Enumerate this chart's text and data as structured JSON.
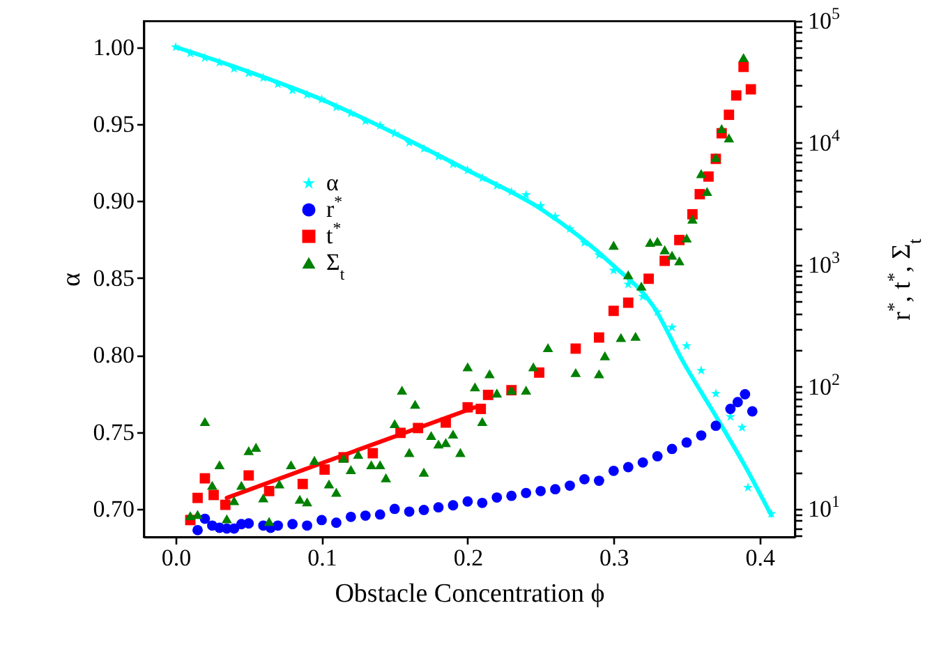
{
  "chart_data": {
    "type": "scatter",
    "xlabel": "Obstacle Concentration ϕ",
    "ylabel": "α",
    "y2label": "r$^{*}$, t$^{*}$, Σ$_{t}$",
    "log": "y2",
    "legend": "left",
    "xlim": [
      -0.022,
      0.424
    ],
    "ylim": [
      0.682,
      1.017
    ],
    "y2lim": [
      5.9,
      100000
    ],
    "xticks": [
      {
        "value": 0,
        "label": "0.0"
      },
      0.1,
      0.2,
      0.3,
      0.4
    ],
    "yticks": [
      {
        "value": 0.7,
        "label": "0.70"
      },
      0.75,
      {
        "value": 0.8,
        "label": "0.80"
      },
      0.85,
      {
        "value": 0.9,
        "label": "0.90"
      },
      0.95,
      {
        "value": 1,
        "label": "1.00"
      }
    ],
    "y2ticks": [
      {
        "value": 6,
        "label": null
      },
      {
        "value": 7,
        "label": null
      },
      {
        "value": 8,
        "label": null
      },
      {
        "value": 9,
        "label": null
      },
      {
        "value": 10,
        "label": "10$^{1}$"
      },
      {
        "value": 20,
        "label": null
      },
      {
        "value": 30,
        "label": null
      },
      {
        "value": 40,
        "label": null
      },
      {
        "value": 50,
        "label": null
      },
      {
        "value": 60,
        "label": null
      },
      {
        "value": 70,
        "label": null
      },
      {
        "value": 80,
        "label": null
      },
      {
        "value": 90,
        "label": null
      },
      {
        "value": 100,
        "label": "10$^{2}$"
      },
      {
        "value": 200,
        "label": null
      },
      {
        "value": 300,
        "label": null
      },
      {
        "value": 400,
        "label": null
      },
      {
        "value": 500,
        "label": null
      },
      {
        "value": 600,
        "label": null
      },
      {
        "value": 700,
        "label": null
      },
      {
        "value": 800,
        "label": null
      },
      {
        "value": 900,
        "label": null
      },
      {
        "value": 1000,
        "label": "10$^{3}$"
      },
      {
        "value": 2000,
        "label": null
      },
      {
        "value": 3000,
        "label": null
      },
      {
        "value": 4000,
        "label": null
      },
      {
        "value": 5000,
        "label": null
      },
      {
        "value": 6000,
        "label": null
      },
      {
        "value": 7000,
        "label": null
      },
      {
        "value": 8000,
        "label": null
      },
      {
        "value": 9000,
        "label": null
      },
      {
        "value": 10000,
        "label": "10$^{4}$"
      },
      {
        "value": 20000,
        "label": null
      },
      {
        "value": 30000,
        "label": null
      },
      {
        "value": 40000,
        "label": null
      },
      {
        "value": 50000,
        "label": null
      },
      {
        "value": 60000,
        "label": null
      },
      {
        "value": 70000,
        "label": null
      },
      {
        "value": 80000,
        "label": null
      },
      {
        "value": 90000,
        "label": null
      },
      {
        "value": 100000,
        "label": "10$^{5}$"
      }
    ],
    "series": [
      {
        "name": "α",
        "color": "#00ffff",
        "type": "scatter",
        "marker": "star",
        "x": [
          0,
          0.01,
          0.02,
          0.03,
          0.04,
          0.05,
          0.06,
          0.07,
          0.08,
          0.09,
          0.1,
          0.11,
          0.12,
          0.13,
          0.14,
          0.15,
          0.16,
          0.17,
          0.18,
          0.19,
          0.2,
          0.21,
          0.22,
          0.23,
          0.24,
          0.25,
          0.26,
          0.27,
          0.28,
          0.29,
          0.3,
          0.31,
          0.32,
          0.33,
          0.34,
          0.35,
          0.36,
          0.37,
          0.38,
          0.388,
          0.392,
          0.408
        ],
        "values": [
          1,
          0.996,
          0.993,
          0.99,
          0.986,
          0.983,
          0.98,
          0.976,
          0.972,
          0.969,
          0.966,
          0.961,
          0.957,
          0.952,
          0.949,
          0.944,
          0.938,
          0.934,
          0.929,
          0.924,
          0.92,
          0.915,
          0.91,
          0.906,
          0.904,
          0.897,
          0.89,
          0.882,
          0.873,
          0.865,
          0.855,
          0.846,
          0.838,
          0.828,
          0.818,
          0.806,
          0.79,
          0.775,
          0.76,
          0.753,
          0.714,
          0.697
        ]
      },
      {
        "color": "#00ffff",
        "type": "line",
        "x": [
          0,
          0.05,
          0.1,
          0.15,
          0.2,
          0.25,
          0.3,
          0.327,
          0.348,
          0.369,
          0.39,
          0.408
        ],
        "values": [
          1,
          0.984,
          0.966,
          0.944,
          0.92,
          0.895,
          0.858,
          0.832,
          0.795,
          0.762,
          0.728,
          0.696
        ]
      },
      {
        "name": "r$^{*}$",
        "color": "#0000ff",
        "type": "scatter",
        "marker": "circle",
        "axis": "y2",
        "x": [
          0.015,
          0.02,
          0.025,
          0.03,
          0.035,
          0.04,
          0.045,
          0.05,
          0.06,
          0.065,
          0.07,
          0.08,
          0.09,
          0.1,
          0.11,
          0.12,
          0.13,
          0.14,
          0.15,
          0.16,
          0.17,
          0.18,
          0.19,
          0.2,
          0.21,
          0.22,
          0.23,
          0.24,
          0.25,
          0.26,
          0.27,
          0.28,
          0.29,
          0.3,
          0.31,
          0.32,
          0.33,
          0.34,
          0.35,
          0.36,
          0.37,
          0.38,
          0.385,
          0.39,
          0.395
        ],
        "values": [
          6.7,
          8.3,
          7.3,
          7,
          6.9,
          6.9,
          7.5,
          7.6,
          7.3,
          7,
          7.3,
          7.5,
          7.3,
          8.1,
          7.7,
          8.6,
          8.8,
          9,
          10,
          9.5,
          9.8,
          10.3,
          10.7,
          11.5,
          11.2,
          12.4,
          12.8,
          13.5,
          14,
          14.5,
          15.5,
          17.5,
          17,
          20.5,
          22,
          24,
          27,
          31,
          35,
          40,
          48,
          66,
          75,
          87,
          63
        ]
      },
      {
        "name": "t$^{*}$",
        "color": "#ff0000",
        "type": "scatter",
        "marker": "square",
        "axis": "y2",
        "x": [
          0.01,
          0.015,
          0.02,
          0.026,
          0.034,
          0.05,
          0.064,
          0.087,
          0.102,
          0.115,
          0.135,
          0.154,
          0.166,
          0.185,
          0.2,
          0.209,
          0.214,
          0.23,
          0.249,
          0.274,
          0.29,
          0.3,
          0.31,
          0.324,
          0.335,
          0.345,
          0.354,
          0.359,
          0.365,
          0.37,
          0.374,
          0.379,
          0.384,
          0.389,
          0.394
        ],
        "values": [
          8.1,
          12.3,
          17.8,
          13,
          10.8,
          18.8,
          14,
          16,
          21,
          26.5,
          28.6,
          42,
          46,
          51,
          68,
          66,
          86,
          94,
          131,
          206,
          254,
          420,
          490,
          770,
          1080,
          1600,
          2600,
          3800,
          5300,
          7400,
          12000,
          17000,
          24500,
          42000,
          27500
        ]
      },
      {
        "color": "#ff0000",
        "type": "line",
        "axis": "y2",
        "x": [
          0.035,
          0.12,
          0.205
        ],
        "values": [
          12.3,
          29,
          68
        ]
      },
      {
        "name": "Σ$_{t}$",
        "color": "#008000",
        "type": "scatter",
        "marker": "triangle",
        "axis": "y2",
        "x": [
          0.01,
          0.015,
          0.02,
          0.025,
          0.03,
          0.035,
          0.04,
          0.045,
          0.05,
          0.055,
          0.06,
          0.064,
          0.071,
          0.079,
          0.085,
          0.09,
          0.095,
          0.105,
          0.11,
          0.115,
          0.12,
          0.125,
          0.134,
          0.14,
          0.144,
          0.15,
          0.155,
          0.16,
          0.164,
          0.17,
          0.175,
          0.18,
          0.185,
          0.19,
          0.195,
          0.2,
          0.205,
          0.21,
          0.215,
          0.22,
          0.23,
          0.24,
          0.245,
          0.255,
          0.274,
          0.29,
          0.294,
          0.3,
          0.305,
          0.31,
          0.315,
          0.319,
          0.325,
          0.33,
          0.335,
          0.34,
          0.345,
          0.35,
          0.354,
          0.36,
          0.364,
          0.37,
          0.374,
          0.379,
          0.389
        ],
        "values": [
          8.8,
          9,
          52,
          15.6,
          23,
          8.3,
          11.7,
          15.6,
          30,
          32,
          12.3,
          7.9,
          16,
          23,
          12,
          11.4,
          25,
          16,
          13.7,
          26,
          21,
          28,
          23,
          23,
          18,
          50,
          94,
          29,
          72,
          20,
          40,
          34,
          35,
          41,
          29,
          146,
          100,
          52,
          128,
          89,
          94,
          94,
          146,
          210,
          131,
          128,
          180,
          1450,
          254,
          830,
          260,
          670,
          1530,
          1560,
          1330,
          1200,
          1080,
          1660,
          2370,
          5600,
          4000,
          7600,
          13100,
          11000,
          50000
        ]
      }
    ]
  }
}
